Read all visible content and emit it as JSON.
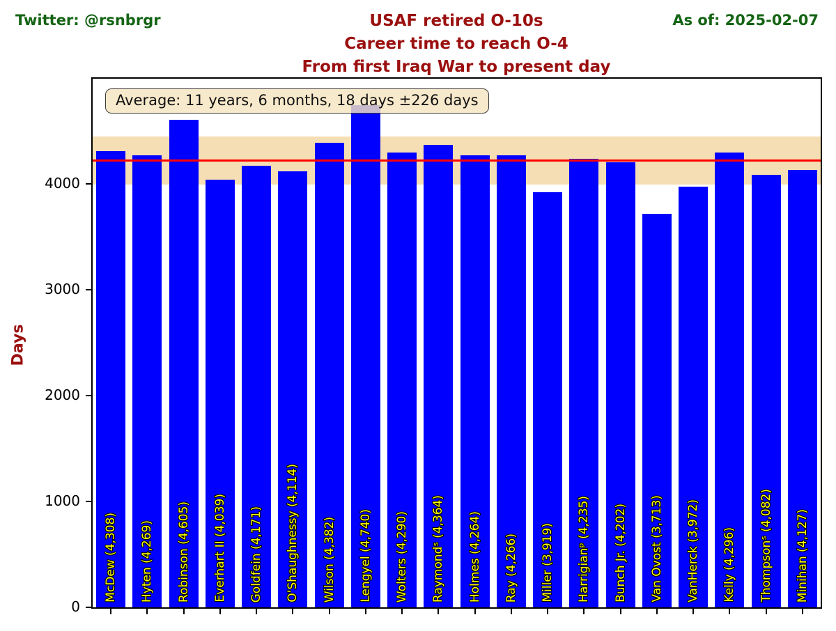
{
  "header": {
    "twitter": "Twitter: @rsnbrgr",
    "as_of": "As of: 2025-02-07",
    "green_color": "#146414",
    "dark_red_color": "#9b0f0f"
  },
  "chart_data": {
    "type": "bar",
    "title": "USAF retired O-10s",
    "subtitle1": "Career time to reach O-4",
    "subtitle2": "From first Iraq War to present day",
    "ylabel": "Days",
    "xlabel": "",
    "ylim": [
      0,
      4990
    ],
    "yticks": [
      0,
      1000,
      2000,
      3000,
      4000
    ],
    "grid": false,
    "legend_position": "none",
    "annotation": "Average: 11 years, 6 months, 18 days ±226 days",
    "average_days": 4218,
    "stdev_days": 226,
    "band_range": [
      3992,
      4444
    ],
    "categories": [
      "McDew",
      "Hyten",
      "Robinson",
      "Everhart II",
      "Goldfein",
      "O'Shaughnessy",
      "Wilson",
      "Lengyel",
      "Wolters",
      "Raymondˢ",
      "Holmes",
      "Ray",
      "Miller",
      "Harrigianᵖ",
      "Bunch Jr.",
      "Van Ovost",
      "VanHerck",
      "Kelly",
      "Thompsonˢ",
      "Minihan"
    ],
    "values": [
      4308,
      4269,
      4605,
      4039,
      4171,
      4114,
      4382,
      4740,
      4290,
      4364,
      4264,
      4266,
      3919,
      4235,
      4202,
      3713,
      3972,
      4296,
      4082,
      4127
    ],
    "colors": {
      "bar": "#0000ff",
      "band": "#f5deb3",
      "average_line": "#ff0000",
      "bar_label": "#ffff00"
    }
  }
}
